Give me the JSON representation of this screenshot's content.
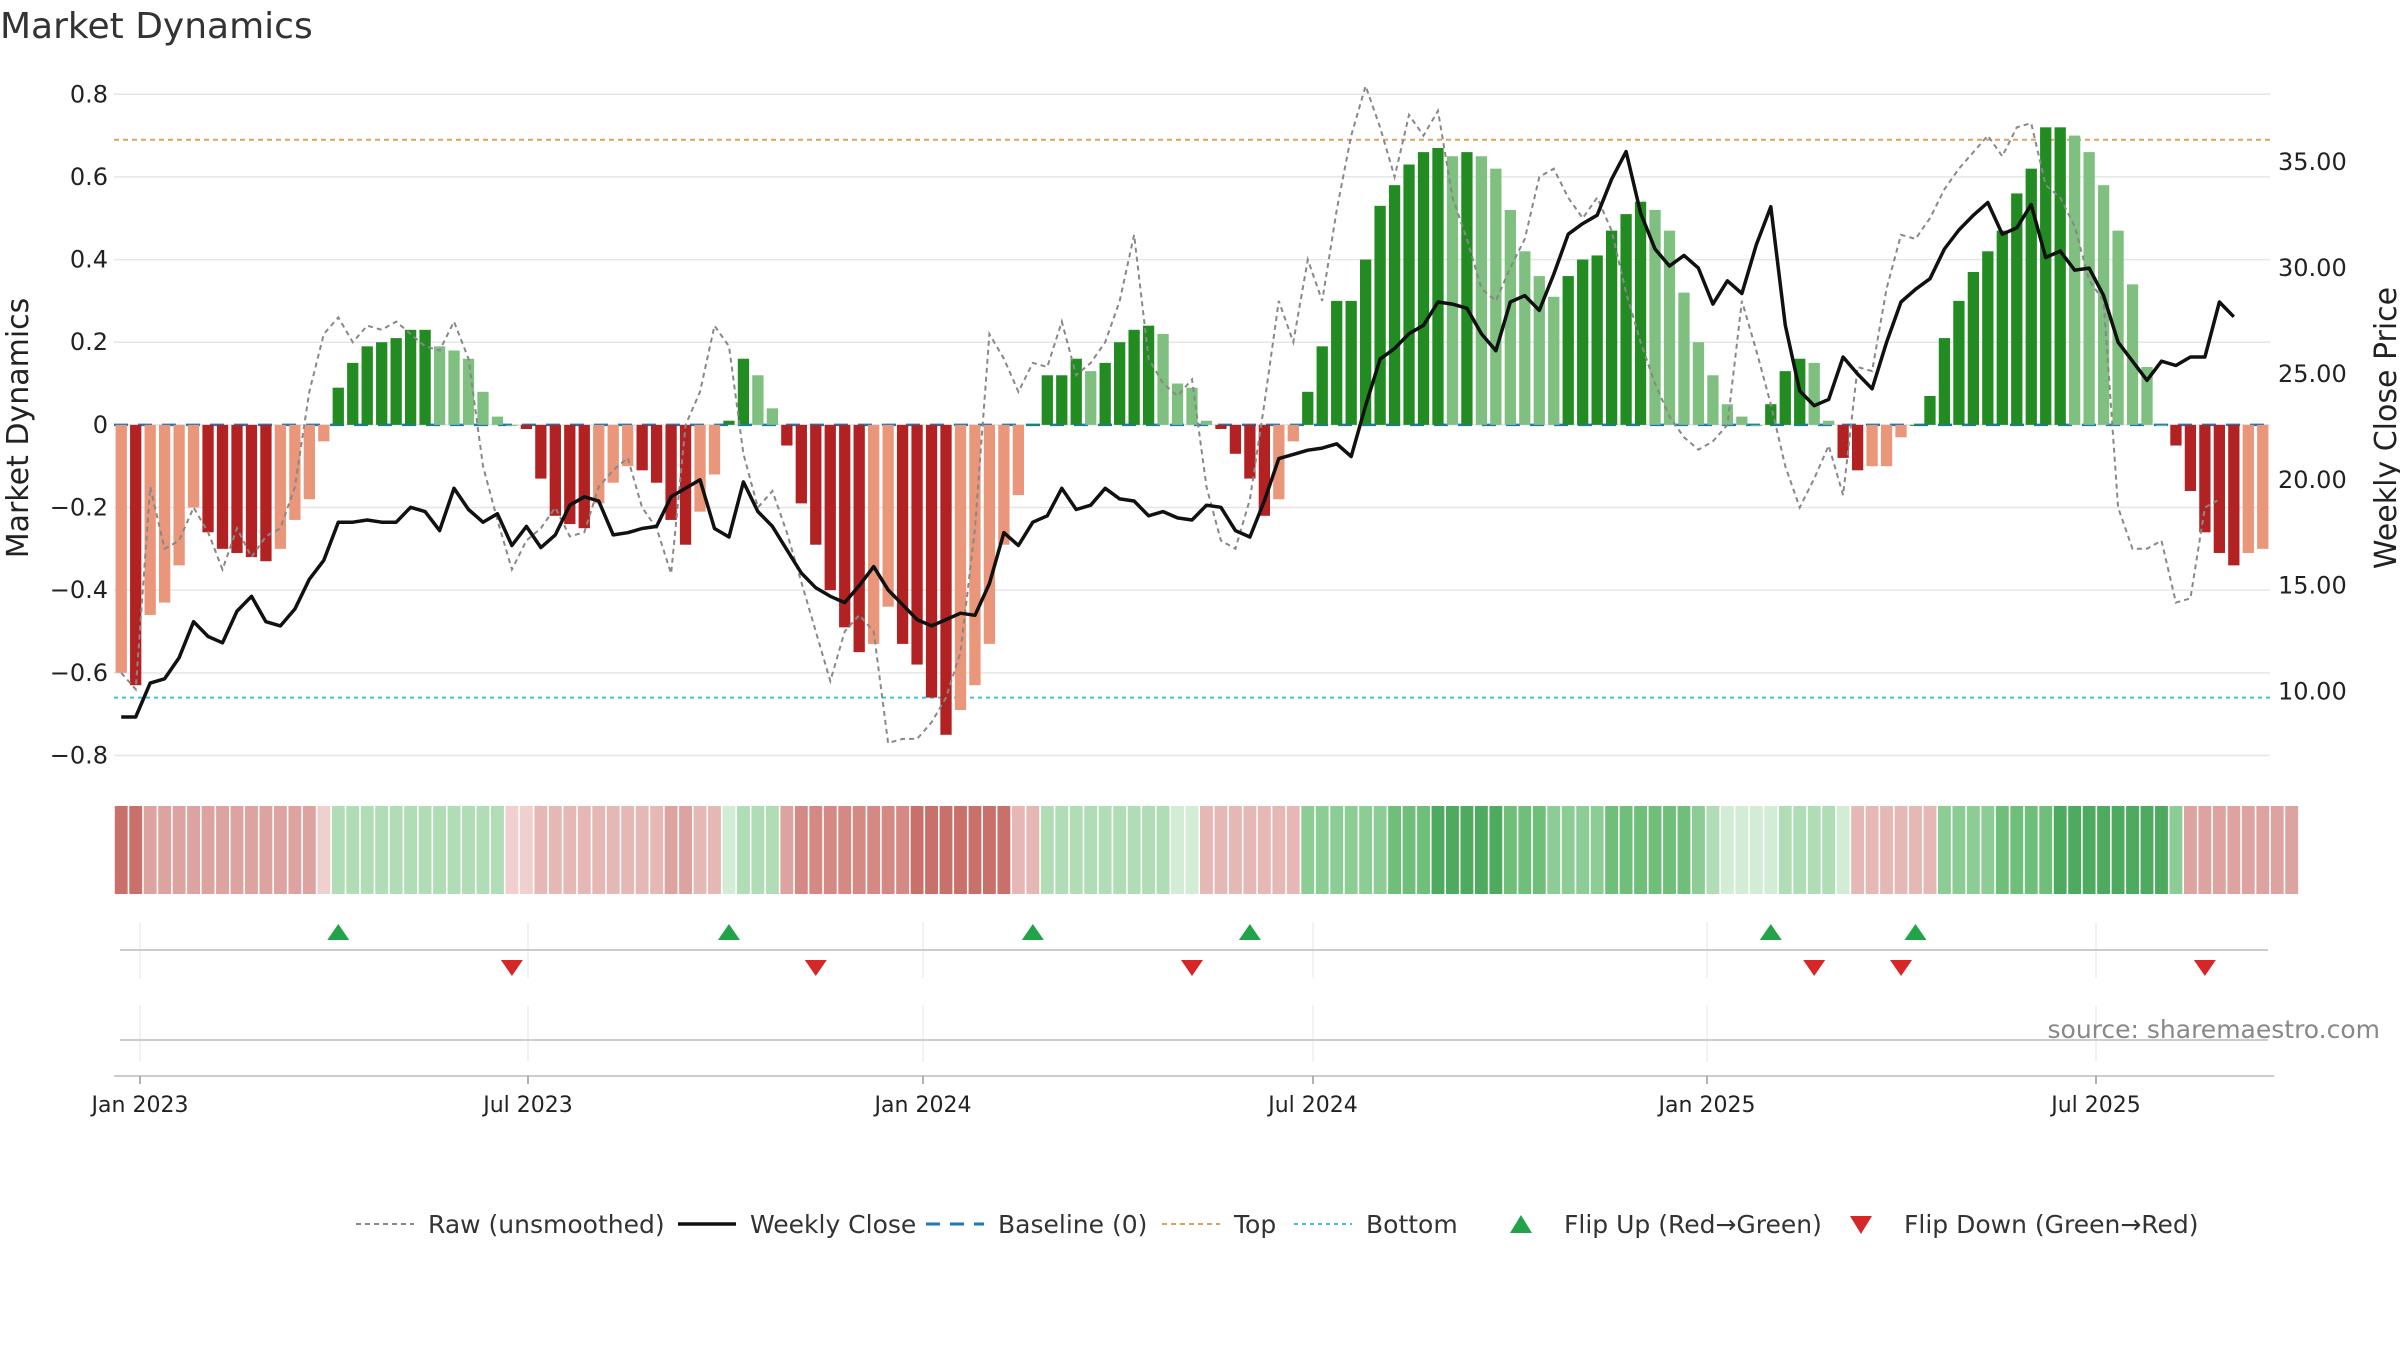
{
  "chart_data": {
    "type": "bar",
    "title": "Market Dynamics",
    "ylabel": "Market Dynamics",
    "y2label": "Weekly Close Price",
    "ylim": [
      -0.84,
      0.82
    ],
    "y2lim": [
      6.2,
      38.6
    ],
    "y_ticks": [
      "0.8",
      "0.6",
      "0.4",
      "0.2",
      "0",
      "−0.2",
      "−0.4",
      "−0.6",
      "−0.8"
    ],
    "y2_ticks": [
      "35.00",
      "30.00",
      "25.00",
      "20.00",
      "15.00",
      "10.00"
    ],
    "x_ticks": [
      "Jan 2023",
      "Jul 2023",
      "Jan 2024",
      "Jul 2024",
      "Jan 2025",
      "Jul 2025"
    ],
    "top_level": 0.69,
    "bottom_level": -0.66,
    "source": "source: sharemaestro.com",
    "colors": {
      "strong_red": "#b22222",
      "light_red": "#e9967a",
      "strong_green": "#228b22",
      "light_green": "#7fbf7f",
      "raw": "#888888",
      "close": "#111111",
      "baseline": "#1f77b4",
      "top": "#e0a060",
      "bottom": "#40c0d8",
      "flip_up": "#22a34a",
      "flip_down": "#d62728"
    },
    "momentum": [
      -0.6,
      -0.63,
      -0.46,
      -0.43,
      -0.34,
      -0.2,
      -0.26,
      -0.3,
      -0.31,
      -0.32,
      -0.33,
      -0.3,
      -0.23,
      -0.18,
      -0.04,
      0.09,
      0.15,
      0.19,
      0.2,
      0.21,
      0.23,
      0.23,
      0.19,
      0.18,
      0.16,
      0.08,
      0.02,
      0,
      -0.01,
      -0.13,
      -0.22,
      -0.24,
      -0.25,
      -0.19,
      -0.14,
      -0.1,
      -0.11,
      -0.14,
      -0.23,
      -0.29,
      -0.21,
      -0.12,
      0.01,
      0.16,
      0.12,
      0.04,
      -0.05,
      -0.19,
      -0.29,
      -0.4,
      -0.49,
      -0.55,
      -0.53,
      -0.44,
      -0.53,
      -0.58,
      -0.66,
      -0.75,
      -0.69,
      -0.63,
      -0.53,
      -0.29,
      -0.17,
      0,
      0.12,
      0.12,
      0.16,
      0.13,
      0.15,
      0.2,
      0.23,
      0.24,
      0.22,
      0.1,
      0.09,
      0.01,
      -0.01,
      -0.07,
      -0.13,
      -0.22,
      -0.18,
      -0.04,
      0.08,
      0.19,
      0.3,
      0.3,
      0.4,
      0.53,
      0.58,
      0.63,
      0.66,
      0.67,
      0.65,
      0.66,
      0.65,
      0.62,
      0.52,
      0.42,
      0.36,
      0.31,
      0.36,
      0.4,
      0.41,
      0.47,
      0.51,
      0.54,
      0.52,
      0.47,
      0.32,
      0.2,
      0.12,
      0.05,
      0.02,
      0,
      0.05,
      0.13,
      0.16,
      0.15,
      0.01,
      -0.08,
      -0.11,
      -0.1,
      -0.1,
      -0.03,
      0,
      0.07,
      0.21,
      0.3,
      0.37,
      0.42,
      0.47,
      0.56,
      0.62,
      0.72,
      0.72,
      0.7,
      0.66,
      0.58,
      0.47,
      0.34,
      0.14,
      0,
      -0.05,
      -0.16,
      -0.26,
      -0.31,
      -0.34,
      -0.31,
      -0.3
    ],
    "raw": [
      -0.6,
      -0.64,
      -0.15,
      -0.3,
      -0.28,
      -0.2,
      -0.26,
      -0.35,
      -0.25,
      -0.32,
      -0.27,
      -0.25,
      -0.15,
      0.08,
      0.22,
      0.26,
      0.2,
      0.24,
      0.23,
      0.25,
      0.22,
      0.19,
      0.18,
      0.25,
      0.16,
      -0.1,
      -0.23,
      -0.35,
      -0.28,
      -0.25,
      -0.2,
      -0.27,
      -0.26,
      -0.15,
      -0.11,
      -0.08,
      -0.2,
      -0.25,
      -0.36,
      0,
      0.08,
      0.24,
      0.19,
      -0.07,
      -0.2,
      -0.16,
      -0.26,
      -0.38,
      -0.5,
      -0.62,
      -0.5,
      -0.46,
      -0.5,
      -0.77,
      -0.76,
      -0.76,
      -0.72,
      -0.66,
      -0.55,
      -0.25,
      0.22,
      0.16,
      0.08,
      0.15,
      0.14,
      0.25,
      0.12,
      0.15,
      0.2,
      0.3,
      0.46,
      0.16,
      0.1,
      0.07,
      0.11,
      -0.15,
      -0.28,
      -0.3,
      -0.18,
      0.05,
      0.3,
      0.2,
      0.4,
      0.3,
      0.52,
      0.7,
      0.82,
      0.72,
      0.6,
      0.75,
      0.7,
      0.76,
      0.55,
      0.45,
      0.33,
      0.3,
      0.38,
      0.45,
      0.6,
      0.62,
      0.55,
      0.5,
      0.55,
      0.47,
      0.32,
      0.2,
      0.1,
      0.02,
      -0.03,
      -0.06,
      -0.04,
      0,
      0.3,
      0.18,
      0.05,
      -0.1,
      -0.2,
      -0.13,
      -0.05,
      -0.17,
      0.14,
      0.13,
      0.33,
      0.46,
      0.45,
      0.5,
      0.57,
      0.62,
      0.66,
      0.7,
      0.65,
      0.72,
      0.73,
      0.58,
      0.55,
      0.48,
      0.35,
      0.3,
      -0.2,
      -0.3,
      -0.3,
      -0.28,
      -0.43,
      -0.42,
      -0.2,
      -0.18
    ],
    "close": [
      8.8,
      8.8,
      10.4,
      10.6,
      11.6,
      13.3,
      12.6,
      12.3,
      13.8,
      14.5,
      13.3,
      13.1,
      13.9,
      15.3,
      16.2,
      18.0,
      18.0,
      18.1,
      18.0,
      18.0,
      18.7,
      18.5,
      17.6,
      19.6,
      18.6,
      18.0,
      18.4,
      16.9,
      17.8,
      16.8,
      17.4,
      18.8,
      19.2,
      19.0,
      17.4,
      17.5,
      17.7,
      17.8,
      19.2,
      19.6,
      20.0,
      17.7,
      17.3,
      19.9,
      18.5,
      17.8,
      16.7,
      15.6,
      14.9,
      14.5,
      14.2,
      15.0,
      15.9,
      14.8,
      14.1,
      13.4,
      13.1,
      13.4,
      13.7,
      13.6,
      15.1,
      17.5,
      16.9,
      18.0,
      18.3,
      19.6,
      18.6,
      18.8,
      19.6,
      19.1,
      19.0,
      18.3,
      18.5,
      18.2,
      18.1,
      18.8,
      18.7,
      17.6,
      17.3,
      19.0,
      21.0,
      21.2,
      21.4,
      21.5,
      21.7,
      21.1,
      23.5,
      25.7,
      26.2,
      26.9,
      27.3,
      28.4,
      28.3,
      28.1,
      26.9,
      26.1,
      28.4,
      28.7,
      28.0,
      29.7,
      31.6,
      32.1,
      32.5,
      34.2,
      35.5,
      32.6,
      30.9,
      30.1,
      30.6,
      30.0,
      28.3,
      29.4,
      28.8,
      31.1,
      32.9,
      27.3,
      24.2,
      23.5,
      23.8,
      25.8,
      25.0,
      24.3,
      26.5,
      28.4,
      29.0,
      29.5,
      30.9,
      31.8,
      32.5,
      33.1,
      31.6,
      31.9,
      33.0,
      30.5,
      30.8,
      29.9,
      30.0,
      28.7,
      26.5,
      25.6,
      24.7,
      25.6,
      25.4,
      25.8,
      25.8,
      28.4,
      27.7
    ],
    "color_levels": [
      -5,
      -5,
      -3,
      -3,
      -3,
      -3,
      -3,
      -3,
      -3,
      -3,
      -3,
      -3,
      -3,
      -3,
      -1,
      2,
      2,
      2,
      2,
      2,
      2,
      2,
      2,
      2,
      2,
      2,
      2,
      -1,
      -1,
      -2,
      -2,
      -2,
      -2,
      -2,
      -2,
      -2,
      -2,
      -2,
      -3,
      -3,
      -2,
      -2,
      1,
      2,
      2,
      2,
      -3,
      -4,
      -4,
      -4,
      -4,
      -4,
      -4,
      -4,
      -4,
      -5,
      -5,
      -5,
      -5,
      -5,
      -5,
      -5,
      -2,
      -2,
      2,
      2,
      2,
      2,
      2,
      2,
      2,
      2,
      2,
      1,
      1,
      -2,
      -2,
      -2,
      -2,
      -2,
      -2,
      -2,
      3,
      3,
      3,
      3,
      3,
      3,
      4,
      4,
      4,
      5,
      5,
      5,
      5,
      5,
      4,
      4,
      4,
      3,
      3,
      3,
      3,
      4,
      4,
      4,
      4,
      4,
      4,
      3,
      2,
      1,
      1,
      1,
      1,
      2,
      2,
      2,
      2,
      1,
      -2,
      -2,
      -2,
      -2,
      -2,
      -2,
      3,
      3,
      3,
      3,
      4,
      4,
      4,
      4,
      5,
      5,
      5,
      5,
      5,
      5,
      5,
      5,
      3,
      -3,
      -3,
      -3,
      -3,
      -3,
      -3,
      -3,
      -3
    ],
    "flip_up_x": [
      15,
      42,
      63,
      78,
      114,
      124
    ],
    "flip_down_x": [
      27,
      48,
      74,
      117,
      123,
      144
    ],
    "legend": [
      "Raw (unsmoothed)",
      "Weekly Close",
      "Baseline (0)",
      "Top",
      "Bottom",
      "Flip Up (Red→Green)",
      "Flip Down (Green→Red)"
    ]
  }
}
